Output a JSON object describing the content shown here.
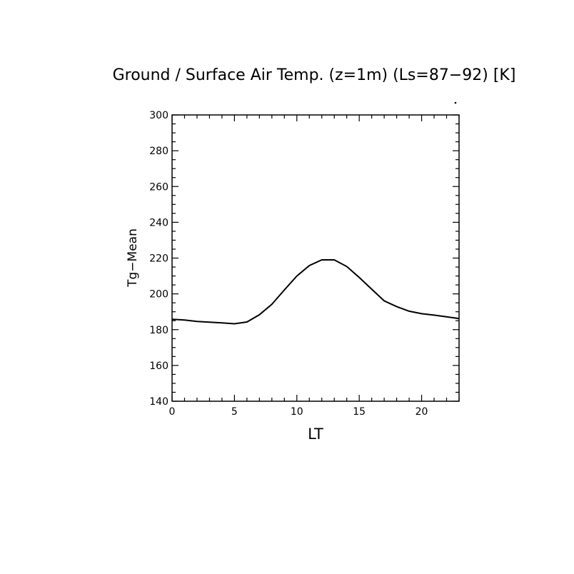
{
  "chart_data": {
    "type": "line",
    "title": "Ground / Surface Air Temp. (z=1m) (Ls=87−92) [K]",
    "xlabel": "LT",
    "ylabel": "Tg−Mean",
    "xlim": [
      0,
      23
    ],
    "ylim": [
      140,
      300
    ],
    "xticks": [
      0,
      5,
      10,
      15,
      20
    ],
    "yticks": [
      140,
      160,
      180,
      200,
      220,
      240,
      260,
      280,
      300
    ],
    "grid": false,
    "series": [
      {
        "name": "Tg-Mean",
        "color": "#000000",
        "x": [
          0,
          1,
          2,
          3,
          4,
          5,
          6,
          7,
          8,
          9,
          10,
          11,
          12,
          13,
          14,
          15,
          16,
          17,
          18,
          19,
          20,
          21,
          22,
          23
        ],
        "values": [
          185.8,
          185.4,
          184.6,
          184.2,
          183.8,
          183.3,
          184.3,
          188.3,
          194.2,
          202.2,
          210.0,
          215.8,
          219.0,
          219.0,
          215.3,
          209.2,
          202.6,
          196.1,
          192.9,
          190.3,
          188.9,
          188.1,
          187.2,
          186.2
        ]
      }
    ]
  }
}
